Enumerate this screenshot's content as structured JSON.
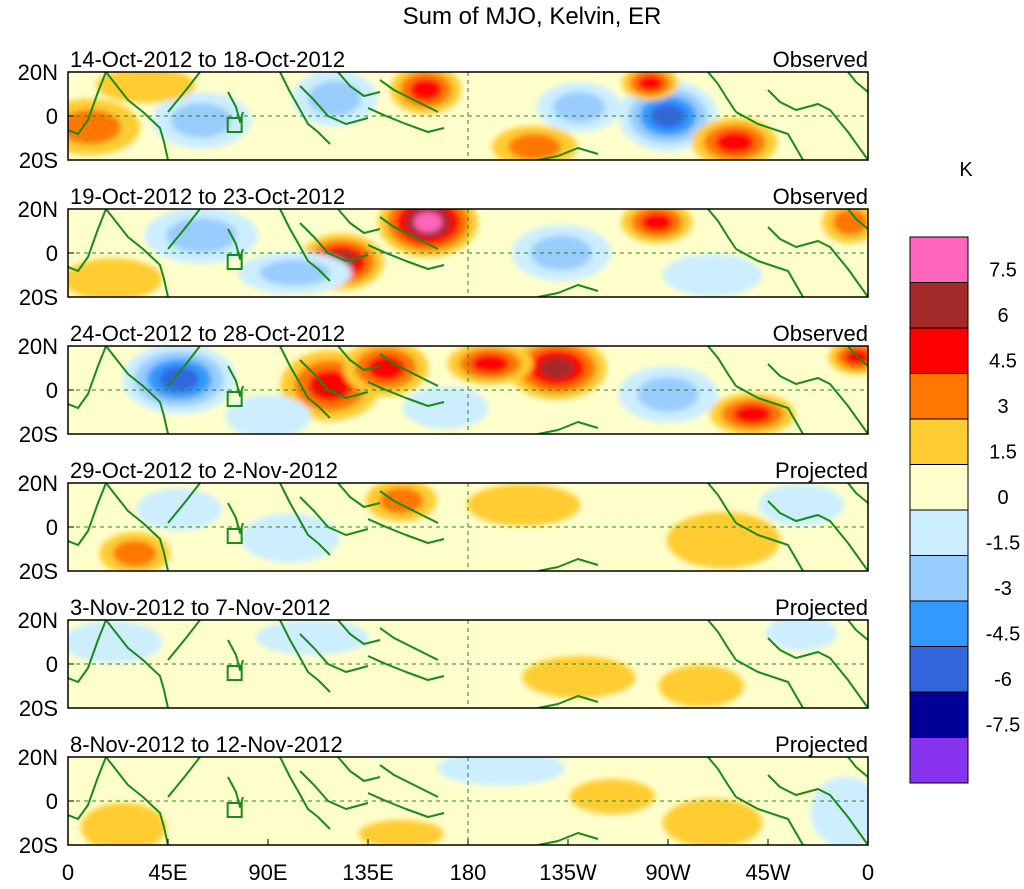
{
  "chart_data": {
    "type": "heatmap",
    "title": "Sum of MJO, Kelvin, ER",
    "units_label": "K",
    "x_ticks": [
      "0",
      "45E",
      "90E",
      "135E",
      "180",
      "135W",
      "90W",
      "45W",
      "0"
    ],
    "x_tick_values": [
      0,
      45,
      90,
      135,
      180,
      225,
      270,
      315,
      360
    ],
    "xlim": [
      0,
      360
    ],
    "y_ticks": [
      "20N",
      "0",
      "20S"
    ],
    "y_tick_values": [
      20,
      0,
      -20
    ],
    "ylim": [
      -20,
      20
    ],
    "colorbar": {
      "levels": [
        "7.5",
        "6",
        "4.5",
        "3",
        "1.5",
        "0",
        "-1.5",
        "-3",
        "-4.5",
        "-6",
        "-7.5"
      ],
      "colors": [
        "#ff66bb",
        "#a52a2a",
        "#ff0000",
        "#ff7700",
        "#ffcc33",
        "#ffffcc",
        "#cceeff",
        "#99ccff",
        "#3399ff",
        "#3366dd",
        "#000099",
        "#8833ee"
      ]
    },
    "panels": [
      {
        "period": "14-Oct-2012 to 18-Oct-2012",
        "status": "Observed",
        "anomalies": [
          {
            "lon": 161,
            "lat": 12,
            "rx": 10,
            "ry": 7,
            "value": 5
          },
          {
            "lon": 270,
            "lat": 0,
            "rx": 14,
            "ry": 10,
            "value": -7
          },
          {
            "lon": 300,
            "lat": -12,
            "rx": 12,
            "ry": 7,
            "value": 5
          },
          {
            "lon": 60,
            "lat": -2,
            "rx": 14,
            "ry": 8,
            "value": -3
          },
          {
            "lon": 120,
            "lat": 8,
            "rx": 12,
            "ry": 8,
            "value": -3
          },
          {
            "lon": 10,
            "lat": -5,
            "rx": 14,
            "ry": 8,
            "value": 3
          },
          {
            "lon": 230,
            "lat": 4,
            "rx": 12,
            "ry": 7,
            "value": -3
          },
          {
            "lon": 210,
            "lat": -14,
            "rx": 12,
            "ry": 6,
            "value": 3
          },
          {
            "lon": 262,
            "lat": 15,
            "rx": 8,
            "ry": 5,
            "value": 5
          },
          {
            "lon": 35,
            "lat": 14,
            "rx": 14,
            "ry": 5,
            "value": 1.5
          }
        ]
      },
      {
        "period": "19-Oct-2012 to 23-Oct-2012",
        "status": "Observed",
        "anomalies": [
          {
            "lon": 162,
            "lat": 14,
            "rx": 14,
            "ry": 10,
            "value": 7.5
          },
          {
            "lon": 123,
            "lat": -4,
            "rx": 12,
            "ry": 8,
            "value": 6
          },
          {
            "lon": 60,
            "lat": 8,
            "rx": 16,
            "ry": 8,
            "value": -3
          },
          {
            "lon": 102,
            "lat": -9,
            "rx": 16,
            "ry": 6,
            "value": -3
          },
          {
            "lon": 222,
            "lat": 0,
            "rx": 14,
            "ry": 8,
            "value": -3
          },
          {
            "lon": 265,
            "lat": 14,
            "rx": 10,
            "ry": 6,
            "value": 4.5
          },
          {
            "lon": 352,
            "lat": 14,
            "rx": 8,
            "ry": 6,
            "value": 3
          },
          {
            "lon": 20,
            "lat": -12,
            "rx": 14,
            "ry": 6,
            "value": 1.5
          },
          {
            "lon": 290,
            "lat": -10,
            "rx": 14,
            "ry": 6,
            "value": -1.5
          }
        ]
      },
      {
        "period": "24-Oct-2012 to 28-Oct-2012",
        "status": "Observed",
        "anomalies": [
          {
            "lon": 50,
            "lat": 5,
            "rx": 16,
            "ry": 10,
            "value": -6
          },
          {
            "lon": 118,
            "lat": 2,
            "rx": 14,
            "ry": 10,
            "value": 4.5
          },
          {
            "lon": 143,
            "lat": 10,
            "rx": 12,
            "ry": 8,
            "value": 4.5
          },
          {
            "lon": 220,
            "lat": 10,
            "rx": 14,
            "ry": 9,
            "value": 6
          },
          {
            "lon": 190,
            "lat": 12,
            "rx": 12,
            "ry": 6,
            "value": 4.5
          },
          {
            "lon": 270,
            "lat": -2,
            "rx": 14,
            "ry": 8,
            "value": -3
          },
          {
            "lon": 308,
            "lat": -11,
            "rx": 12,
            "ry": 6,
            "value": 4.5
          },
          {
            "lon": 355,
            "lat": 15,
            "rx": 8,
            "ry": 5,
            "value": 4.5
          },
          {
            "lon": 90,
            "lat": -12,
            "rx": 12,
            "ry": 6,
            "value": -1.5
          },
          {
            "lon": 170,
            "lat": -8,
            "rx": 12,
            "ry": 6,
            "value": -1.5
          }
        ]
      },
      {
        "period": "29-Oct-2012 to 2-Nov-2012",
        "status": "Projected",
        "anomalies": [
          {
            "lon": 150,
            "lat": 12,
            "rx": 10,
            "ry": 6,
            "value": 3
          },
          {
            "lon": 30,
            "lat": -12,
            "rx": 10,
            "ry": 6,
            "value": 3
          },
          {
            "lon": 295,
            "lat": -6,
            "rx": 16,
            "ry": 8,
            "value": 1.5
          },
          {
            "lon": 205,
            "lat": 10,
            "rx": 16,
            "ry": 6,
            "value": 1.5
          },
          {
            "lon": 100,
            "lat": -5,
            "rx": 14,
            "ry": 7,
            "value": -1.5
          },
          {
            "lon": 50,
            "lat": 8,
            "rx": 12,
            "ry": 6,
            "value": -1.5
          },
          {
            "lon": 330,
            "lat": 10,
            "rx": 12,
            "ry": 6,
            "value": -1.5
          }
        ]
      },
      {
        "period": "3-Nov-2012 to 7-Nov-2012",
        "status": "Projected",
        "anomalies": [
          {
            "lon": 20,
            "lat": 10,
            "rx": 14,
            "ry": 6,
            "value": -1.5
          },
          {
            "lon": 110,
            "lat": 12,
            "rx": 16,
            "ry": 5,
            "value": -1.5
          },
          {
            "lon": 230,
            "lat": -6,
            "rx": 16,
            "ry": 6,
            "value": 1.5
          },
          {
            "lon": 285,
            "lat": -10,
            "rx": 12,
            "ry": 6,
            "value": 1.5
          },
          {
            "lon": 330,
            "lat": 14,
            "rx": 10,
            "ry": 5,
            "value": -1.5
          }
        ]
      },
      {
        "period": "8-Nov-2012 to 12-Nov-2012",
        "status": "Projected",
        "anomalies": [
          {
            "lon": 25,
            "lat": -12,
            "rx": 12,
            "ry": 7,
            "value": 1.5
          },
          {
            "lon": 195,
            "lat": 15,
            "rx": 18,
            "ry": 5,
            "value": -1.5
          },
          {
            "lon": 245,
            "lat": 2,
            "rx": 12,
            "ry": 5,
            "value": 1.5
          },
          {
            "lon": 290,
            "lat": -10,
            "rx": 14,
            "ry": 7,
            "value": 1.5
          },
          {
            "lon": 350,
            "lat": -5,
            "rx": 10,
            "ry": 10,
            "value": -1.5
          },
          {
            "lon": 150,
            "lat": -15,
            "rx": 12,
            "ry": 4,
            "value": 1.5
          }
        ]
      }
    ]
  }
}
